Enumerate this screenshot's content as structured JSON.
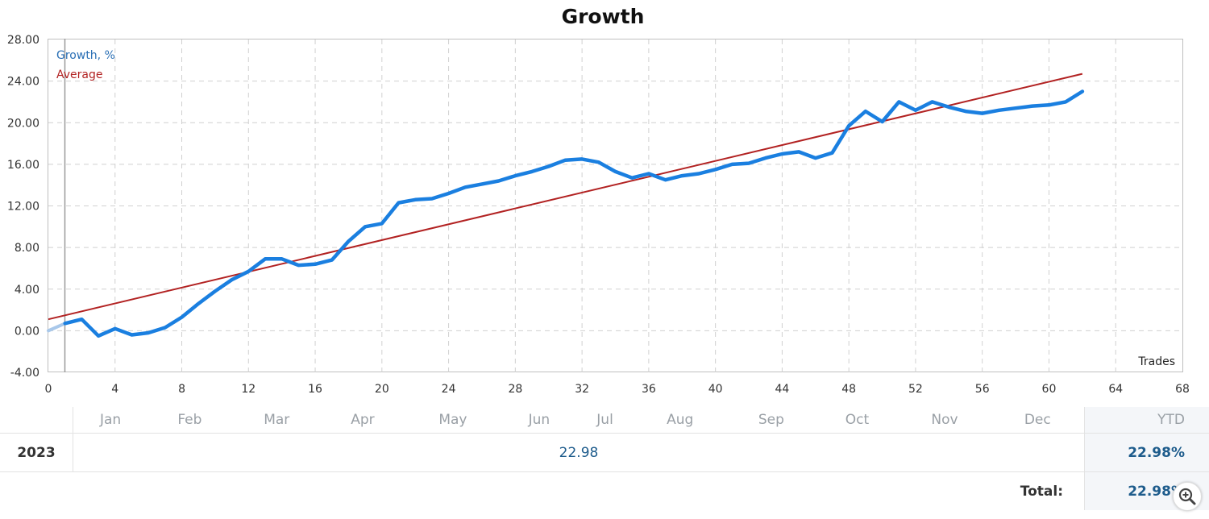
{
  "chart_data": {
    "type": "line",
    "title": "Growth",
    "xlabel": "Trades",
    "xlim": [
      0,
      68
    ],
    "ylim": [
      -4,
      28
    ],
    "x_ticks": [
      "0",
      "4",
      "8",
      "12",
      "16",
      "20",
      "24",
      "28",
      "32",
      "36",
      "40",
      "44",
      "48",
      "52",
      "56",
      "60",
      "64",
      "68"
    ],
    "y_ticks": [
      "28.00",
      "24.00",
      "20.00",
      "16.00",
      "12.00",
      "8.00",
      "4.00",
      "0.00",
      "-4.00"
    ],
    "legend": {
      "placement": "top-left"
    },
    "grid": true,
    "series": [
      {
        "name": "Growth, %",
        "color": "#1a7fe0",
        "x": [
          0,
          1,
          2,
          3,
          4,
          5,
          6,
          7,
          8,
          9,
          10,
          11,
          12,
          13,
          14,
          15,
          16,
          17,
          18,
          19,
          20,
          21,
          22,
          23,
          24,
          25,
          26,
          27,
          28,
          29,
          30,
          31,
          32,
          33,
          34,
          35,
          36,
          37,
          38,
          39,
          40,
          41,
          42,
          43,
          44,
          45,
          46,
          47,
          48,
          49,
          50,
          51,
          52,
          53,
          54,
          55,
          56,
          57,
          58,
          59,
          60,
          61,
          62
        ],
        "y": [
          0.0,
          0.7,
          1.1,
          -0.5,
          0.2,
          -0.4,
          -0.2,
          0.3,
          1.3,
          2.6,
          3.8,
          4.9,
          5.7,
          6.9,
          6.9,
          6.3,
          6.4,
          6.8,
          8.6,
          10.0,
          10.3,
          12.3,
          12.6,
          12.7,
          13.2,
          13.8,
          14.1,
          14.4,
          14.9,
          15.3,
          15.8,
          16.4,
          16.5,
          16.2,
          15.3,
          14.7,
          15.1,
          14.5,
          14.9,
          15.1,
          15.5,
          16.0,
          16.1,
          16.6,
          17.0,
          17.2,
          16.6,
          17.1,
          19.7,
          21.1,
          20.1,
          22.0,
          21.2,
          22.0,
          21.5,
          21.1,
          20.9,
          21.2,
          21.4,
          21.6,
          21.7,
          22.0,
          23.0
        ]
      },
      {
        "name": "Average",
        "color": "#b22222",
        "x": [
          0,
          62
        ],
        "y": [
          1.1,
          24.7
        ]
      }
    ]
  },
  "table": {
    "months": [
      "Jan",
      "Feb",
      "Mar",
      "Apr",
      "May",
      "Jun",
      "Jul",
      "Aug",
      "Sep",
      "Oct",
      "Nov",
      "Dec"
    ],
    "ytd_header": "YTD",
    "year": "2023",
    "year_value": "22.98",
    "ytd_value": "22.98%",
    "total_label": "Total:",
    "total_value": "22.98%"
  },
  "icons": {
    "zoom": "zoom-in-icon"
  }
}
